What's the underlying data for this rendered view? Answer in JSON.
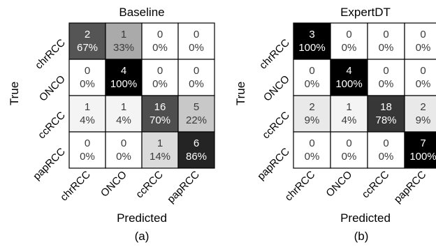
{
  "chart_data": [
    {
      "type": "heatmap",
      "title": "Baseline",
      "xlabel": "Predicted",
      "ylabel": "True",
      "sublabel": "(a)",
      "row_labels": [
        "chrRCC",
        "ONCO",
        "ccRCC",
        "papRCC"
      ],
      "col_labels": [
        "chrRCC",
        "ONCO",
        "ccRCC",
        "papRCC"
      ],
      "counts": [
        [
          2,
          1,
          0,
          0
        ],
        [
          0,
          4,
          0,
          0
        ],
        [
          1,
          1,
          16,
          5
        ],
        [
          0,
          0,
          1,
          6
        ]
      ],
      "percents": [
        [
          "67%",
          "33%",
          "0%",
          "0%"
        ],
        [
          "0%",
          "100%",
          "0%",
          "0%"
        ],
        [
          "4%",
          "4%",
          "70%",
          "22%"
        ],
        [
          "0%",
          "0%",
          "14%",
          "86%"
        ]
      ]
    },
    {
      "type": "heatmap",
      "title": "ExpertDT",
      "xlabel": "Predicted",
      "ylabel": "True",
      "sublabel": "(b)",
      "row_labels": [
        "chrRCC",
        "ONCO",
        "ccRCC",
        "papRCC"
      ],
      "col_labels": [
        "chrRCC",
        "ONCO",
        "ccRCC",
        "papRCC"
      ],
      "counts": [
        [
          3,
          0,
          0,
          0
        ],
        [
          0,
          4,
          0,
          0
        ],
        [
          2,
          1,
          18,
          2
        ],
        [
          0,
          0,
          0,
          7
        ]
      ],
      "percents": [
        [
          "100%",
          "0%",
          "0%",
          "0%"
        ],
        [
          "0%",
          "100%",
          "0%",
          "0%"
        ],
        [
          "9%",
          "4%",
          "78%",
          "9%"
        ],
        [
          "0%",
          "0%",
          "0%",
          "100%"
        ]
      ]
    }
  ]
}
